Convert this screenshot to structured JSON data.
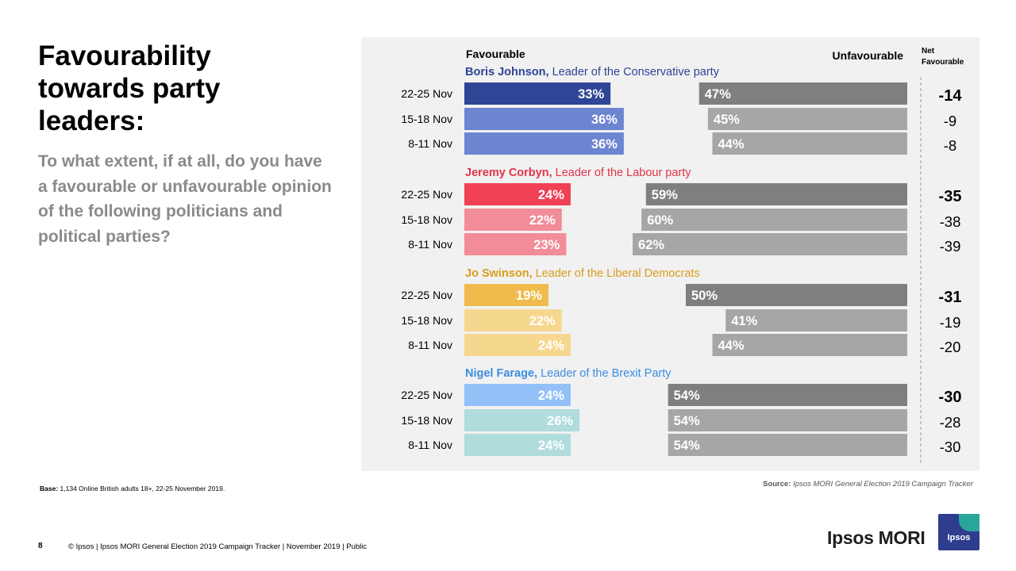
{
  "slide": {
    "title": "Favourability towards party leaders:",
    "question": "To what extent, if at all, do you have a favourable or unfavourable opinion of the following politicians and political parties?",
    "base_label": "Base:",
    "base_text": "1,134 Online British adults 18+,  22-25 November 2019.",
    "source_label": "Source:",
    "source_text": "Ipsos MORI General Election 2019 Campaign Tracker",
    "page_number": "8",
    "footer": "© Ipsos | Ipsos MORI  General Election 2019 Campaign  Tracker | November 2019 | Public",
    "logo_text": "Ipsos MORI",
    "logo_badge": "Ipsos"
  },
  "colors": {
    "unfav_current": "#7f7f7f",
    "unfav_past": "#a6a6a6",
    "panel": "#f1f1f1"
  },
  "chart_data": {
    "type": "bar",
    "subtype": "diverging-horizontal",
    "header_favourable": "Favourable",
    "header_unfavourable": "Unfavourable",
    "header_net": "Net Favourable",
    "scale_max": 100,
    "groups": [
      {
        "name": "Boris Johnson,",
        "role": "Leader of the Conservative  party",
        "name_color": "#2f4596",
        "fav_colors": [
          "#2f4596",
          "#6d84d1",
          "#6d84d1"
        ],
        "rows": [
          {
            "period": "22-25 Nov",
            "favourable": 33,
            "unfavourable": 47,
            "net": "-14",
            "current": true
          },
          {
            "period": "15-18 Nov",
            "favourable": 36,
            "unfavourable": 45,
            "net": "-9",
            "current": false
          },
          {
            "period": "8-11 Nov",
            "favourable": 36,
            "unfavourable": 44,
            "net": "-8",
            "current": false
          }
        ]
      },
      {
        "name": "Jeremy  Corbyn,",
        "role": "Leader of the Labour party",
        "name_color": "#e2344a",
        "fav_colors": [
          "#ef4054",
          "#f28c98",
          "#f28c98"
        ],
        "rows": [
          {
            "period": "22-25 Nov",
            "favourable": 24,
            "unfavourable": 59,
            "net": "-35",
            "current": true
          },
          {
            "period": "15-18 Nov",
            "favourable": 22,
            "unfavourable": 60,
            "net": "-38",
            "current": false
          },
          {
            "period": "8-11 Nov",
            "favourable": 23,
            "unfavourable": 62,
            "net": "-39",
            "current": false
          }
        ]
      },
      {
        "name": "Jo Swinson,",
        "role": "Leader of the Liberal Democrats",
        "name_color": "#d99d1c",
        "fav_colors": [
          "#f0bb4c",
          "#f6d78e",
          "#f6d78e"
        ],
        "rows": [
          {
            "period": "22-25 Nov",
            "favourable": 19,
            "unfavourable": 50,
            "net": "-31",
            "current": true
          },
          {
            "period": "15-18 Nov",
            "favourable": 22,
            "unfavourable": 41,
            "net": "-19",
            "current": false
          },
          {
            "period": "8-11 Nov",
            "favourable": 24,
            "unfavourable": 44,
            "net": "-20",
            "current": false
          }
        ]
      },
      {
        "name": "Nigel  Farage,",
        "role": "Leader of the Brexit Party",
        "name_color": "#3b8ee0",
        "fav_colors": [
          "#92c0f7",
          "#b0dcdc",
          "#b0dcdc"
        ],
        "rows": [
          {
            "period": "22-25 Nov",
            "favourable": 24,
            "unfavourable": 54,
            "net": "-30",
            "current": true
          },
          {
            "period": "15-18 Nov",
            "favourable": 26,
            "unfavourable": 54,
            "net": "-28",
            "current": false
          },
          {
            "period": "8-11 Nov",
            "favourable": 24,
            "unfavourable": 54,
            "net": "-30",
            "current": false
          }
        ]
      }
    ]
  }
}
